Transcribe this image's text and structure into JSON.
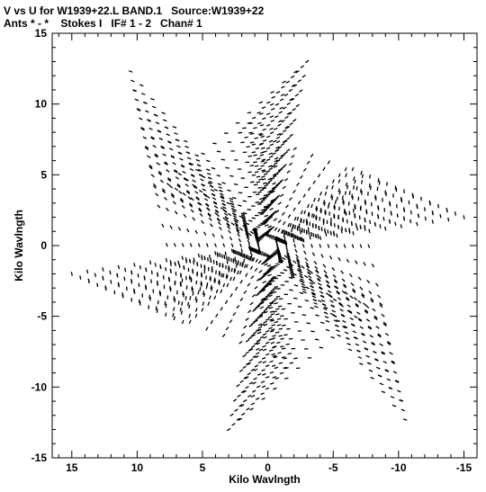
{
  "chart_data": {
    "type": "scatter",
    "title": "V vs U for W1939+22.L BAND.1   Source:W1939+22",
    "subtitle": "Ants * - *    Stokes I   IF# 1 - 2   Chan# 1",
    "xlabel": "Kilo Wavlngth",
    "ylabel": "Kilo Wavlngth",
    "xlim": [
      16.5,
      -16
    ],
    "ylim": [
      -15,
      15
    ],
    "x_ticks": [
      15,
      10,
      5,
      0,
      -5,
      -10,
      -15
    ],
    "y_ticks": [
      15,
      10,
      5,
      0,
      -5,
      -10,
      -15
    ],
    "x_tick_labels": [
      "15",
      "10",
      "5",
      "0",
      "-5",
      "-10",
      "-15"
    ],
    "y_tick_labels": [
      "15",
      "10",
      "5",
      "0",
      "-5",
      "-10",
      "-15"
    ],
    "grid": false,
    "legend": "none",
    "pattern": "six-arm VLA uv-coverage (star shape), point-symmetric tracks",
    "arm_tips": [
      {
        "u": -3.0,
        "v": 13.0
      },
      {
        "u": 10.5,
        "v": 12.3
      },
      {
        "u": 15.0,
        "v": -2.0
      },
      {
        "u": 3.0,
        "v": -13.0
      },
      {
        "u": -10.5,
        "v": -12.3
      },
      {
        "u": -15.0,
        "v": 2.0
      }
    ],
    "valleys": [
      {
        "u": 1.8,
        "v": 8.3
      },
      {
        "u": 8.5,
        "v": 3.6
      },
      {
        "u": 6.5,
        "v": -5.4
      },
      {
        "u": -1.8,
        "v": -8.3
      },
      {
        "u": -8.5,
        "v": -3.6
      },
      {
        "u": -6.5,
        "v": 5.4
      }
    ],
    "radial_tracks": 13,
    "samples_per_track": 12,
    "series": [
      {
        "name": "",
        "color": "#000000",
        "marker": "short dash"
      }
    ]
  }
}
